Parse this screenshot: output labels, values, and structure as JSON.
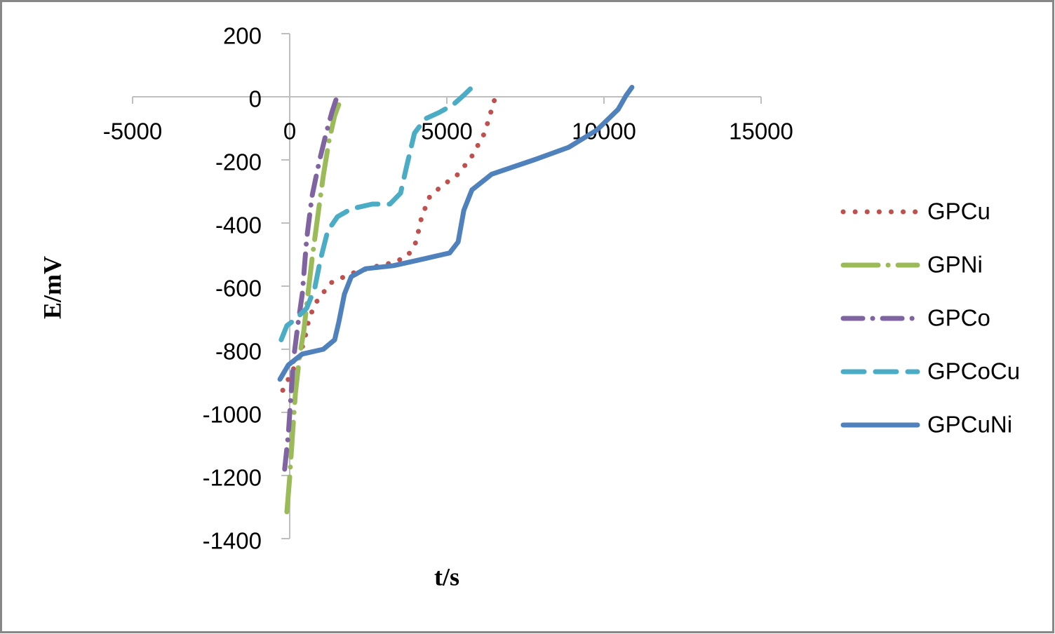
{
  "chart_data": {
    "type": "line",
    "x_label": "t/s",
    "y_label": "E/mV",
    "xlim": [
      -5000,
      15000
    ],
    "xticks": [
      -5000,
      0,
      5000,
      10000,
      15000
    ],
    "ylim": [
      -1400,
      200
    ],
    "yticks": [
      200,
      0,
      -200,
      -400,
      -600,
      -800,
      -1000,
      -1200,
      -1400
    ],
    "legend": "right",
    "series": [
      {
        "name": "GPCu",
        "color": "#c0504d",
        "dash": "0.1,17",
        "x": [
          -220,
          180,
          450,
          620,
          850,
          1300,
          1960,
          2630,
          3300,
          3750,
          4020,
          4200,
          4460,
          4870,
          5310,
          5760,
          6200,
          6560
        ],
        "values": [
          -930,
          -850,
          -780,
          -700,
          -650,
          -590,
          -560,
          -540,
          -525,
          -505,
          -460,
          -380,
          -315,
          -280,
          -250,
          -195,
          -115,
          5
        ]
      },
      {
        "name": "GPNi",
        "color": "#9bbb59",
        "dash": "50,14,0.1,14",
        "x": [
          -90,
          0,
          90,
          180,
          310,
          450,
          580,
          710,
          890,
          1070,
          1250,
          1430,
          1560
        ],
        "values": [
          -1315,
          -1205,
          -1070,
          -940,
          -825,
          -740,
          -625,
          -515,
          -380,
          -250,
          -140,
          -60,
          -25
        ]
      },
      {
        "name": "GPCo",
        "color": "#8064a2",
        "dash": "28,14,0.1,14",
        "x": [
          -160,
          -45,
          45,
          130,
          270,
          400,
          540,
          710,
          940,
          1160,
          1340,
          1520
        ],
        "values": [
          -1180,
          -1070,
          -940,
          -825,
          -715,
          -625,
          -450,
          -315,
          -205,
          -115,
          -50,
          5
        ]
      },
      {
        "name": "GPCoCu",
        "color": "#4bacc6",
        "dash": "30,16",
        "x": [
          -270,
          -90,
          180,
          540,
          800,
          980,
          1210,
          1520,
          1960,
          2630,
          3190,
          3530,
          3710,
          3970,
          4310,
          4750,
          5200,
          5540,
          5800
        ],
        "values": [
          -770,
          -725,
          -705,
          -670,
          -605,
          -515,
          -425,
          -380,
          -355,
          -340,
          -340,
          -305,
          -225,
          -115,
          -70,
          -50,
          -25,
          5,
          30
        ]
      },
      {
        "name": "GPCuNi",
        "color": "#4f81bd",
        "dash": "none",
        "x": [
          -310,
          -45,
          400,
          1070,
          1430,
          1560,
          1740,
          1960,
          2410,
          3300,
          4200,
          5090,
          5360,
          5540,
          5800,
          6430,
          7770,
          8880,
          9780,
          10450,
          10710,
          10890
        ],
        "values": [
          -895,
          -850,
          -815,
          -800,
          -770,
          -715,
          -625,
          -570,
          -545,
          -535,
          -515,
          -495,
          -460,
          -360,
          -295,
          -245,
          -200,
          -160,
          -105,
          -40,
          5,
          30
        ]
      }
    ]
  }
}
